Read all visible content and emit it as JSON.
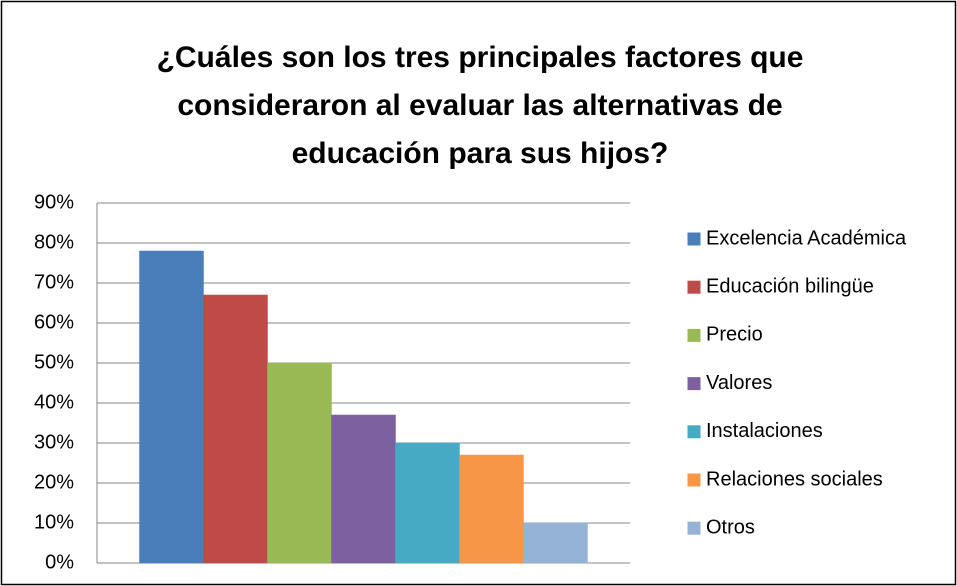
{
  "chart_data": {
    "type": "bar",
    "title": "¿Cuáles son los tres principales factores que consideraron al evaluar las alternativas de educación para sus hijos?",
    "categories": [
      null
    ],
    "series": [
      {
        "name": "Excelencia Académica",
        "color": "#4a7ebb",
        "values": [
          78
        ]
      },
      {
        "name": "Educación bilingüe",
        "color": "#be4b48",
        "values": [
          67
        ]
      },
      {
        "name": "Precio",
        "color": "#98b954",
        "values": [
          50
        ]
      },
      {
        "name": "Valores",
        "color": "#7d60a0",
        "values": [
          37
        ]
      },
      {
        "name": "Instalaciones",
        "color": "#46aac5",
        "values": [
          30
        ]
      },
      {
        "name": "Relaciones sociales",
        "color": "#f79646",
        "values": [
          27
        ]
      },
      {
        "name": "Otros",
        "color": "#95b3d7",
        "values": [
          10
        ]
      }
    ],
    "ylim": [
      0,
      90
    ],
    "yticks": [
      {
        "value": 0,
        "label": "0%"
      },
      {
        "value": 10,
        "label": "10%"
      },
      {
        "value": 20,
        "label": "20%"
      },
      {
        "value": 30,
        "label": "30%"
      },
      {
        "value": 40,
        "label": "40%"
      },
      {
        "value": 50,
        "label": "50%"
      },
      {
        "value": 60,
        "label": "60%"
      },
      {
        "value": 70,
        "label": "70%"
      },
      {
        "value": 80,
        "label": "80%"
      },
      {
        "value": 90,
        "label": "90%"
      }
    ],
    "grid": true,
    "legend": "right"
  }
}
